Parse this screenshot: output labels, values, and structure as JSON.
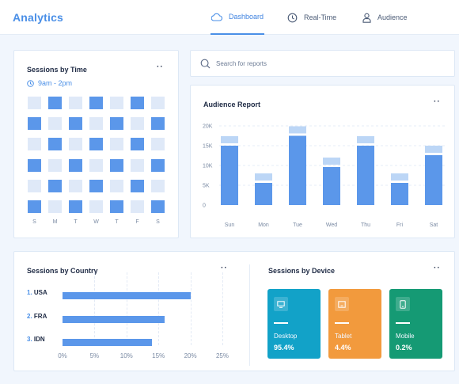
{
  "header": {
    "brand": "Analytics",
    "nav": [
      {
        "label": "Dashboard",
        "icon": "cloud-icon",
        "active": true
      },
      {
        "label": "Real-Time",
        "icon": "clock-icon",
        "active": false
      },
      {
        "label": "Audience",
        "icon": "user-icon",
        "active": false
      }
    ]
  },
  "colors": {
    "accent": "#4a8fe7",
    "bar": "#5b97ea",
    "bar_light": "#bcd6f6",
    "cell_light": "#dfe9f8",
    "desktop": "#12a2c8",
    "tablet": "#f29a3d",
    "mobile": "#159a74"
  },
  "sessions_by_time": {
    "title": "Sessions by Time",
    "time_range": "9am - 2pm",
    "days": [
      "S",
      "M",
      "T",
      "W",
      "T",
      "F",
      "S"
    ],
    "grid": [
      [
        0,
        1,
        0,
        1,
        0,
        1,
        0
      ],
      [
        1,
        0,
        1,
        0,
        1,
        0,
        1
      ],
      [
        0,
        1,
        0,
        1,
        0,
        1,
        0
      ],
      [
        1,
        0,
        1,
        0,
        1,
        0,
        1
      ],
      [
        0,
        1,
        0,
        1,
        0,
        1,
        0
      ],
      [
        1,
        0,
        1,
        0,
        1,
        0,
        1
      ]
    ]
  },
  "search": {
    "placeholder": "Search for reports"
  },
  "audience_report": {
    "title": "Audience Report",
    "y_ticks": [
      "20K",
      "15K",
      "10K",
      "5K",
      "0"
    ],
    "chart_data": {
      "type": "bar",
      "categories": [
        "Sun",
        "Mon",
        "Tue",
        "Wed",
        "Thu",
        "Fri",
        "Sat"
      ],
      "series": [
        {
          "values": [
            15000,
            5600,
            17500,
            9600,
            15000,
            5600,
            12600
          ]
        },
        {
          "values": [
            1800,
            1800,
            1800,
            1800,
            1800,
            1800,
            1800
          ]
        }
      ],
      "ylim": [
        0,
        20000
      ]
    }
  },
  "sessions_by_country": {
    "title": "Sessions by Country",
    "rows": [
      {
        "num": "1.",
        "name": "USA",
        "percent": 20
      },
      {
        "num": "2.",
        "name": "FRA",
        "percent": 16
      },
      {
        "num": "3.",
        "name": "IDN",
        "percent": 14
      }
    ],
    "x_ticks": [
      "0%",
      "5%",
      "10%",
      "15%",
      "20%",
      "25%"
    ],
    "x_max": 25
  },
  "sessions_by_device": {
    "title": "Sessions by Device",
    "devices": [
      {
        "label": "Desktop",
        "value": "95.4%",
        "icon": "desktop-icon"
      },
      {
        "label": "Tablet",
        "value": "4.4%",
        "icon": "tablet-icon"
      },
      {
        "label": "Mobile",
        "value": "0.2%",
        "icon": "mobile-icon"
      }
    ]
  }
}
